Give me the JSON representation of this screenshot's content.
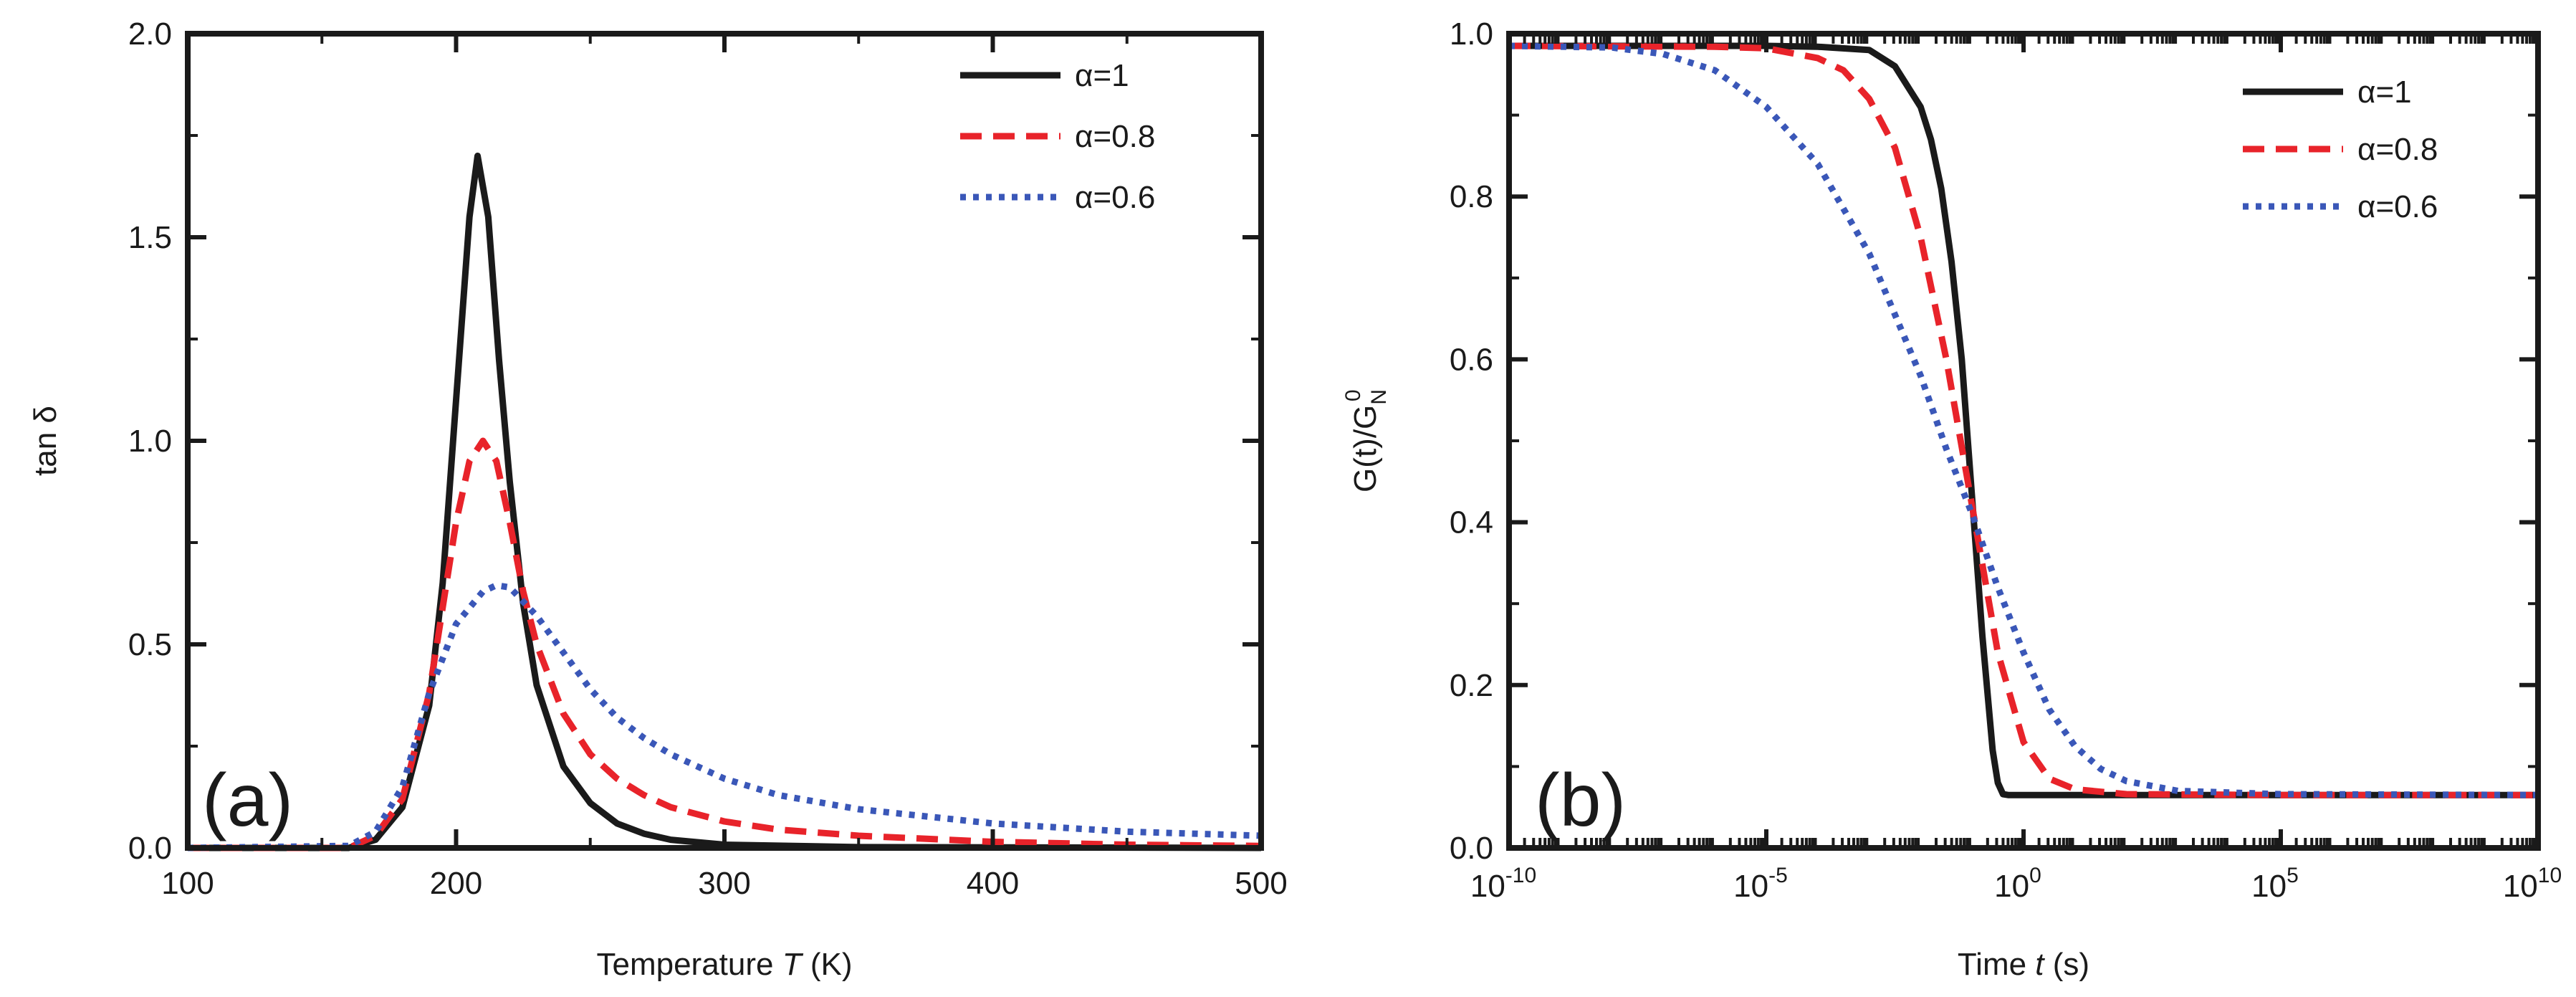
{
  "chart_data": [
    {
      "type": "line",
      "panel_label": "(a)",
      "xlabel_parts": [
        "Temperature ",
        "T",
        " (K)"
      ],
      "ylabel_parts": [
        "tan ",
        "δ"
      ],
      "xlim": [
        100,
        500
      ],
      "ylim": [
        0,
        2.0
      ],
      "xticks": [
        100,
        200,
        300,
        400,
        500
      ],
      "xtick_labels": [
        "100",
        "200",
        "300",
        "400",
        "500"
      ],
      "yticks": [
        0,
        0.5,
        1.0,
        1.5,
        2.0
      ],
      "ytick_labels": [
        "0.0",
        "0.5",
        "1.0",
        "1.5",
        "2.0"
      ],
      "legend_position": "top-right",
      "series": [
        {
          "name": "α=1",
          "color": "#1a1a1a",
          "dash": "solid",
          "x": [
            100,
            160,
            170,
            180,
            190,
            195,
            200,
            205,
            208,
            212,
            216,
            220,
            225,
            230,
            240,
            250,
            260,
            270,
            280,
            300,
            350,
            500
          ],
          "y": [
            0,
            0,
            0.02,
            0.1,
            0.35,
            0.65,
            1.1,
            1.55,
            1.7,
            1.55,
            1.2,
            0.9,
            0.6,
            0.4,
            0.2,
            0.11,
            0.06,
            0.035,
            0.02,
            0.008,
            0.002,
            0
          ]
        },
        {
          "name": "α=0.8",
          "color": "#e8232a",
          "dash": "dashed",
          "x": [
            100,
            160,
            170,
            180,
            190,
            200,
            205,
            210,
            215,
            220,
            225,
            230,
            240,
            250,
            260,
            270,
            280,
            300,
            320,
            350,
            400,
            450,
            500
          ],
          "y": [
            0,
            0,
            0.03,
            0.12,
            0.38,
            0.8,
            0.95,
            1.0,
            0.95,
            0.8,
            0.63,
            0.5,
            0.33,
            0.23,
            0.17,
            0.13,
            0.1,
            0.065,
            0.045,
            0.03,
            0.015,
            0.008,
            0.005
          ]
        },
        {
          "name": "α=0.6",
          "color": "#3a57b8",
          "dash": "dotted",
          "x": [
            100,
            160,
            170,
            180,
            190,
            200,
            210,
            215,
            220,
            230,
            240,
            250,
            260,
            270,
            280,
            300,
            320,
            350,
            400,
            450,
            500
          ],
          "y": [
            0,
            0.005,
            0.04,
            0.15,
            0.38,
            0.55,
            0.63,
            0.645,
            0.64,
            0.57,
            0.48,
            0.39,
            0.32,
            0.27,
            0.23,
            0.17,
            0.13,
            0.095,
            0.06,
            0.04,
            0.03
          ]
        }
      ]
    },
    {
      "type": "line",
      "panel_label": "(b)",
      "xscale": "log",
      "xlabel_parts": [
        "Time ",
        "t",
        " (s)"
      ],
      "ylabel": "G(t)/G",
      "ylabel_subscript": "N",
      "ylabel_superscript": "0",
      "xlim": [
        -10,
        10
      ],
      "ylim": [
        0,
        1.0
      ],
      "xticks": [
        -10,
        -5,
        0,
        5,
        10
      ],
      "xtick_base": "10",
      "xtick_exponents": [
        "-10",
        "-5",
        "0",
        "5",
        "10"
      ],
      "yticks": [
        0,
        0.2,
        0.4,
        0.6,
        0.8,
        1.0
      ],
      "ytick_labels": [
        "0.0",
        "0.2",
        "0.4",
        "0.6",
        "0.8",
        "1.0"
      ],
      "legend_position": "top-right",
      "series": [
        {
          "name": "α=1",
          "color": "#1a1a1a",
          "dash": "solid",
          "log10_x": [
            -10,
            -5,
            -4,
            -3,
            -2.5,
            -2,
            -1.8,
            -1.6,
            -1.4,
            -1.2,
            -1,
            -0.8,
            -0.6,
            -0.5,
            -0.4,
            -0.3,
            0,
            5,
            10
          ],
          "y": [
            0.985,
            0.985,
            0.984,
            0.98,
            0.96,
            0.91,
            0.87,
            0.81,
            0.72,
            0.6,
            0.43,
            0.26,
            0.12,
            0.08,
            0.066,
            0.065,
            0.065,
            0.065,
            0.065
          ]
        },
        {
          "name": "α=0.8",
          "color": "#e8232a",
          "dash": "dashed",
          "log10_x": [
            -10,
            -6,
            -5,
            -4,
            -3.5,
            -3,
            -2.5,
            -2,
            -1.5,
            -1,
            -0.5,
            0,
            0.5,
            1,
            2,
            5,
            10
          ],
          "y": [
            0.985,
            0.984,
            0.982,
            0.97,
            0.955,
            0.92,
            0.86,
            0.75,
            0.6,
            0.42,
            0.24,
            0.13,
            0.085,
            0.072,
            0.066,
            0.065,
            0.065
          ]
        },
        {
          "name": "α=0.6",
          "color": "#3a57b8",
          "dash": "dotted",
          "log10_x": [
            -10,
            -8,
            -7,
            -6,
            -5,
            -4,
            -3,
            -2,
            -1.5,
            -1,
            -0.5,
            0,
            0.5,
            1,
            1.5,
            2,
            3,
            5,
            10
          ],
          "y": [
            0.985,
            0.983,
            0.975,
            0.955,
            0.91,
            0.84,
            0.73,
            0.58,
            0.49,
            0.41,
            0.32,
            0.24,
            0.17,
            0.125,
            0.097,
            0.082,
            0.07,
            0.066,
            0.065
          ]
        }
      ]
    }
  ]
}
